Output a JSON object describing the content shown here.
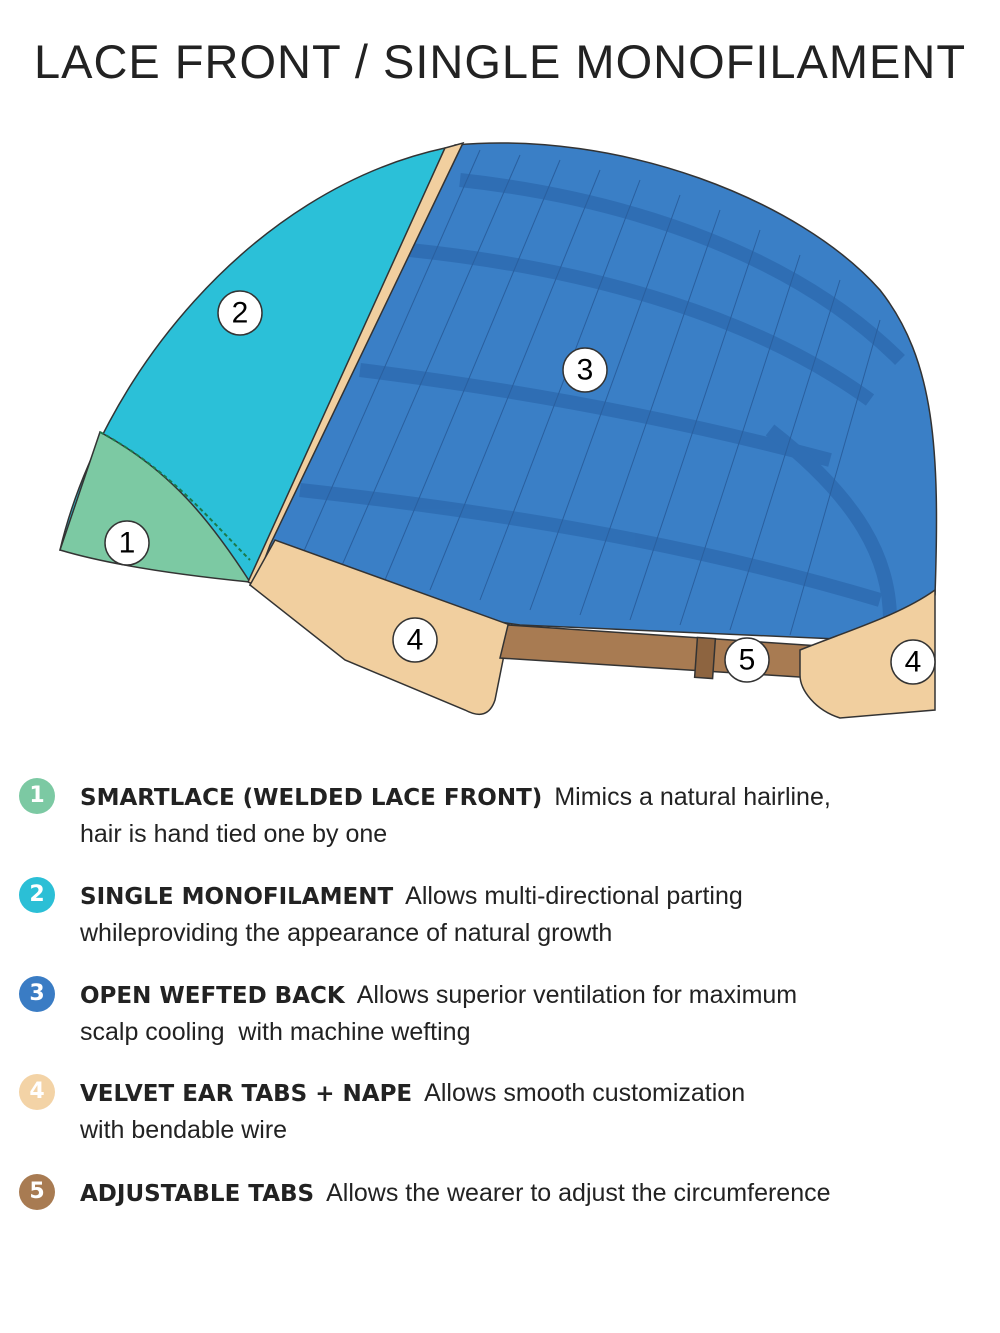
{
  "title": "LACE FRONT / SINGLE MONOFILAMENT",
  "diagram": {
    "callouts": [
      "1",
      "2",
      "3",
      "4",
      "4",
      "5"
    ]
  },
  "legend": [
    {
      "number": "1",
      "heading": "SMARTLACE (WELDED LACE FRONT)",
      "lines": [
        "Mimics a natural hairline,",
        "hair is hand tied one by one"
      ]
    },
    {
      "number": "2",
      "heading": "SINGLE MONOFILAMENT",
      "lines": [
        "Allows multi-directional parting",
        "whileproviding the appearance of natural growth"
      ]
    },
    {
      "number": "3",
      "heading": "OPEN WEFTED BACK",
      "lines": [
        "Allows superior ventilation for maximum",
        "scalp cooling  with machine wefting"
      ]
    },
    {
      "number": "4",
      "heading": "VELVET EAR TABS + NAPE",
      "lines": [
        "Allows smooth customization",
        "with bendable wire"
      ]
    },
    {
      "number": "5",
      "heading": "ADJUSTABLE TABS",
      "lines": [
        "Allows the wearer to adjust the circumference"
      ]
    }
  ]
}
